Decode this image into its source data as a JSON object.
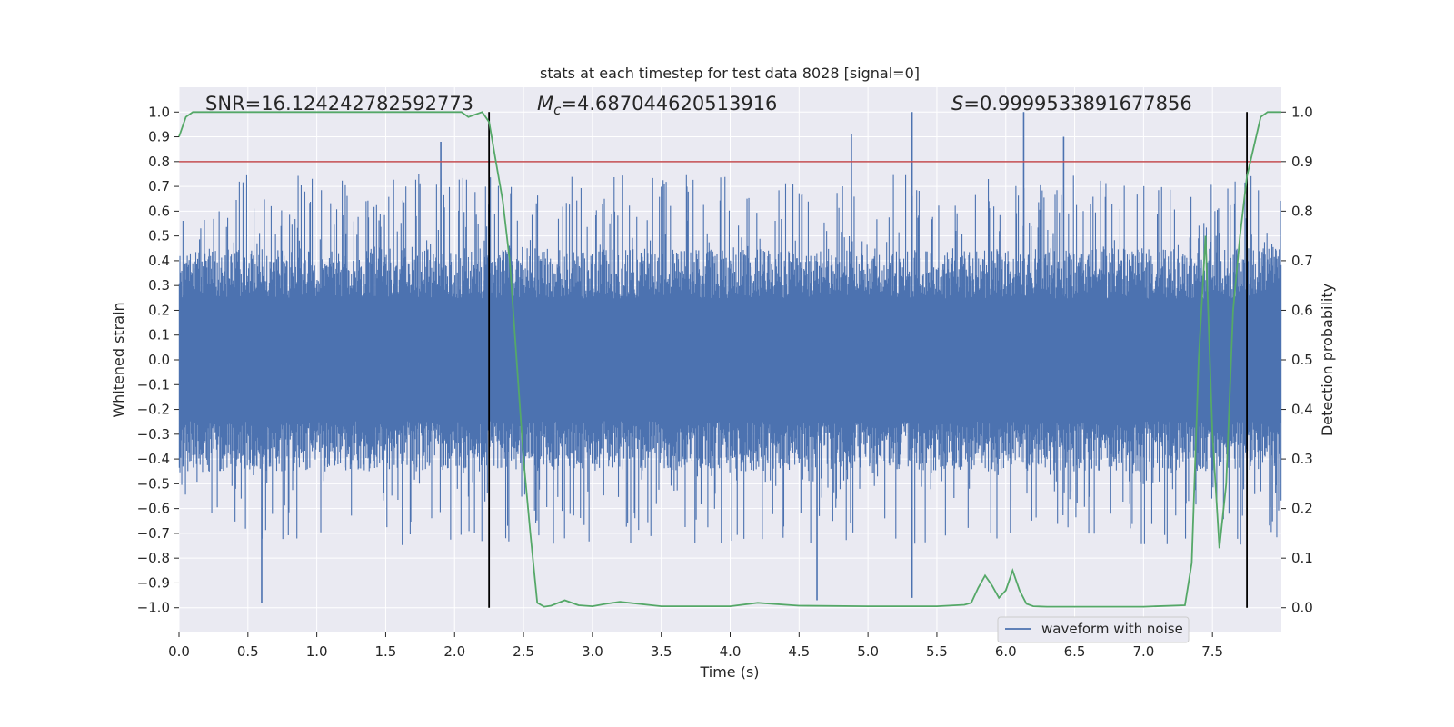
{
  "chart_data": {
    "type": "line",
    "title": "stats at each timestep for test data 8028 [signal=0]",
    "xlabel": "Time (s)",
    "ylabel": "Whitened strain",
    "y2label": "Detection probability",
    "xlim": [
      0.0,
      8.0
    ],
    "ylim": [
      -1.1,
      1.1
    ],
    "y2lim": [
      -0.05,
      1.05
    ],
    "xticks": [
      "0.0",
      "0.5",
      "1.0",
      "1.5",
      "2.0",
      "2.5",
      "3.0",
      "3.5",
      "4.0",
      "4.5",
      "5.0",
      "5.5",
      "6.0",
      "6.5",
      "7.0",
      "7.5"
    ],
    "yticks": [
      "1.0",
      "0.9",
      "0.8",
      "0.7",
      "0.6",
      "0.5",
      "0.4",
      "0.3",
      "0.2",
      "0.1",
      "0.0",
      "−0.1",
      "−0.2",
      "−0.3",
      "−0.4",
      "−0.5",
      "−0.6",
      "−0.7",
      "−0.8",
      "−0.9",
      "−1.0"
    ],
    "y2ticks": [
      "1.0",
      "0.9",
      "0.8",
      "0.7",
      "0.6",
      "0.5",
      "0.4",
      "0.3",
      "0.2",
      "0.1",
      "0.0"
    ],
    "grid": true,
    "legend": {
      "position": "lower-right",
      "entries": [
        "waveform with noise"
      ]
    },
    "annotations": {
      "snr": "SNR=16.124242782592773",
      "mc_symbol": "M",
      "mc_subscript": "c",
      "mc_value": "=4.687044620513916",
      "s_symbol": "S",
      "s_value": "=0.9999533891677856"
    },
    "threshold": {
      "value": 0.8,
      "axis": "left",
      "color": "#c44e52"
    },
    "vertical_lines": [
      2.25,
      7.75
    ],
    "colors": {
      "waveform": "#4c72b0",
      "probability": "#55a868",
      "threshold": "#c44e52",
      "vlines": "#000000",
      "background": "#eaeaf2",
      "grid": "#ffffff"
    },
    "waveform": {
      "name": "waveform with noise",
      "axis": "left",
      "typical_envelope": [
        -0.45,
        0.45
      ],
      "approx_extremes": [
        1.0,
        -1.0
      ],
      "notable_peaks": [
        {
          "x": 0.6,
          "y": -0.98
        },
        {
          "x": 1.9,
          "y": 0.88
        },
        {
          "x": 4.88,
          "y": 0.91
        },
        {
          "x": 5.32,
          "y": 1.0
        },
        {
          "x": 5.32,
          "y": -0.96
        },
        {
          "x": 6.13,
          "y": 1.0
        },
        {
          "x": 6.42,
          "y": 0.9
        },
        {
          "x": 4.63,
          "y": -0.97
        }
      ]
    },
    "probability": {
      "axis": "right",
      "x": [
        0.0,
        0.05,
        0.1,
        0.2,
        0.5,
        1.0,
        1.5,
        2.0,
        2.05,
        2.1,
        2.2,
        2.25,
        2.3,
        2.35,
        2.4,
        2.45,
        2.5,
        2.55,
        2.6,
        2.65,
        2.7,
        2.8,
        2.9,
        3.0,
        3.1,
        3.2,
        3.5,
        4.0,
        4.2,
        4.5,
        5.0,
        5.5,
        5.7,
        5.75,
        5.8,
        5.85,
        5.9,
        5.95,
        6.0,
        6.05,
        6.1,
        6.15,
        6.2,
        6.3,
        6.5,
        7.0,
        7.3,
        7.35,
        7.4,
        7.45,
        7.5,
        7.55,
        7.6,
        7.65,
        7.7,
        7.75,
        7.8,
        7.85,
        7.9,
        7.95,
        8.0
      ],
      "y": [
        0.95,
        0.99,
        1.0,
        1.0,
        1.0,
        1.0,
        1.0,
        1.0,
        1.0,
        0.99,
        1.0,
        0.98,
        0.9,
        0.82,
        0.7,
        0.5,
        0.3,
        0.15,
        0.01,
        0.002,
        0.004,
        0.015,
        0.005,
        0.003,
        0.008,
        0.012,
        0.003,
        0.003,
        0.01,
        0.004,
        0.003,
        0.003,
        0.006,
        0.01,
        0.04,
        0.065,
        0.045,
        0.02,
        0.035,
        0.075,
        0.035,
        0.008,
        0.003,
        0.002,
        0.002,
        0.002,
        0.005,
        0.09,
        0.5,
        0.75,
        0.35,
        0.12,
        0.25,
        0.6,
        0.75,
        0.87,
        0.93,
        0.99,
        1.0,
        1.0,
        1.0
      ]
    }
  }
}
